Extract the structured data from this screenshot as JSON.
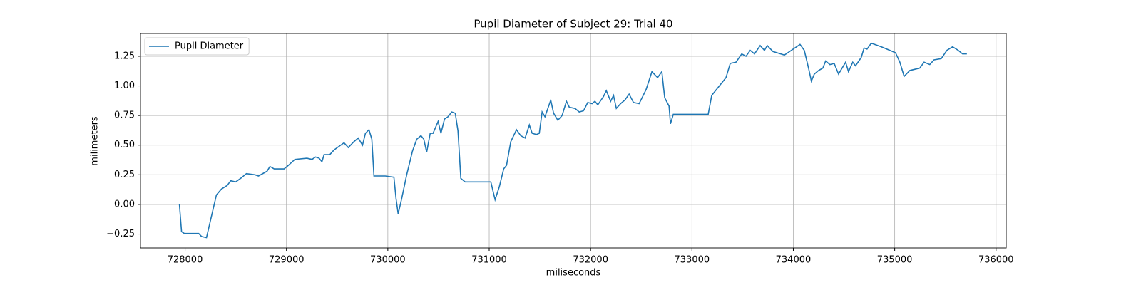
{
  "chart_data": {
    "type": "line",
    "title": "Pupil Diameter of Subject 29: Trial 40",
    "x_label": "miliseconds",
    "y_label": "milimeters",
    "xlim": [
      727560,
      736100
    ],
    "ylim": [
      -0.367,
      1.442
    ],
    "xticks": [
      728000,
      729000,
      730000,
      731000,
      732000,
      733000,
      734000,
      735000,
      736000
    ],
    "yticks": [
      {
        "value": -0.25,
        "label": "−0.25"
      },
      {
        "value": 0,
        "label": "0.00"
      },
      0.25,
      {
        "value": 0.5,
        "label": "0.50"
      },
      0.75,
      {
        "value": 1,
        "label": "1.00"
      },
      1.25
    ],
    "grid": true,
    "legend": "upper left",
    "x": [
      727944,
      727965,
      727993,
      728134,
      728162,
      728211,
      728260,
      728309,
      728359,
      728415,
      728450,
      728499,
      728548,
      728605,
      728689,
      728724,
      728808,
      728837,
      728879,
      728977,
      729019,
      729083,
      729202,
      729252,
      729287,
      729322,
      729350,
      729371,
      729427,
      729470,
      729568,
      729610,
      729666,
      729708,
      729750,
      729779,
      729814,
      729842,
      729863,
      729975,
      730060,
      730081,
      730102,
      730137,
      730186,
      730243,
      730285,
      730327,
      730355,
      730383,
      730418,
      730446,
      730496,
      730524,
      730559,
      730594,
      730630,
      730665,
      730692,
      730720,
      730763,
      731016,
      731058,
      731100,
      731143,
      731171,
      731213,
      731269,
      731311,
      731354,
      731396,
      731424,
      731466,
      731494,
      731522,
      731550,
      731607,
      731635,
      731677,
      731719,
      731762,
      731790,
      731846,
      731888,
      731930,
      731972,
      732015,
      732043,
      732071,
      732127,
      732155,
      732198,
      732226,
      732254,
      732296,
      732338,
      732380,
      732423,
      732479,
      732548,
      732605,
      732661,
      732703,
      732731,
      732774,
      732788,
      732816,
      733160,
      733195,
      733336,
      733378,
      733434,
      733491,
      733533,
      733575,
      733617,
      733673,
      733715,
      733743,
      733799,
      733912,
      734066,
      734108,
      734150,
      734178,
      734207,
      734249,
      734291,
      734319,
      734361,
      734403,
      734446,
      734488,
      734516,
      734544,
      734586,
      734614,
      734670,
      734698,
      734727,
      734769,
      734867,
      734952,
      735008,
      735051,
      735093,
      735149,
      735247,
      735290,
      735346,
      735388,
      735459,
      735515,
      735571,
      735627,
      735669,
      735712
    ],
    "series": [
      {
        "name": "Pupil Diameter",
        "color": "#1f77b4",
        "values": [
          0.0,
          -0.23,
          -0.245,
          -0.245,
          -0.27,
          -0.28,
          -0.1,
          0.08,
          0.13,
          0.16,
          0.2,
          0.19,
          0.22,
          0.26,
          0.25,
          0.24,
          0.28,
          0.32,
          0.3,
          0.3,
          0.33,
          0.38,
          0.39,
          0.38,
          0.4,
          0.39,
          0.36,
          0.42,
          0.42,
          0.46,
          0.52,
          0.48,
          0.53,
          0.56,
          0.5,
          0.6,
          0.63,
          0.55,
          0.24,
          0.24,
          0.23,
          0.05,
          -0.08,
          0.05,
          0.25,
          0.45,
          0.55,
          0.58,
          0.55,
          0.44,
          0.6,
          0.6,
          0.7,
          0.6,
          0.72,
          0.74,
          0.78,
          0.77,
          0.62,
          0.22,
          0.19,
          0.19,
          0.04,
          0.15,
          0.3,
          0.33,
          0.53,
          0.63,
          0.58,
          0.56,
          0.67,
          0.6,
          0.59,
          0.6,
          0.78,
          0.74,
          0.88,
          0.77,
          0.71,
          0.75,
          0.87,
          0.82,
          0.81,
          0.78,
          0.79,
          0.86,
          0.85,
          0.87,
          0.84,
          0.91,
          0.96,
          0.87,
          0.92,
          0.81,
          0.85,
          0.88,
          0.93,
          0.86,
          0.85,
          0.97,
          1.12,
          1.07,
          1.12,
          0.9,
          0.83,
          0.68,
          0.76,
          0.76,
          0.92,
          1.07,
          1.19,
          1.2,
          1.27,
          1.25,
          1.3,
          1.27,
          1.34,
          1.3,
          1.34,
          1.29,
          1.26,
          1.35,
          1.3,
          1.15,
          1.04,
          1.1,
          1.13,
          1.15,
          1.21,
          1.18,
          1.19,
          1.1,
          1.16,
          1.2,
          1.12,
          1.2,
          1.17,
          1.24,
          1.32,
          1.31,
          1.36,
          1.33,
          1.3,
          1.28,
          1.2,
          1.08,
          1.13,
          1.15,
          1.2,
          1.18,
          1.22,
          1.23,
          1.3,
          1.33,
          1.3,
          1.27,
          1.27
        ]
      }
    ]
  }
}
